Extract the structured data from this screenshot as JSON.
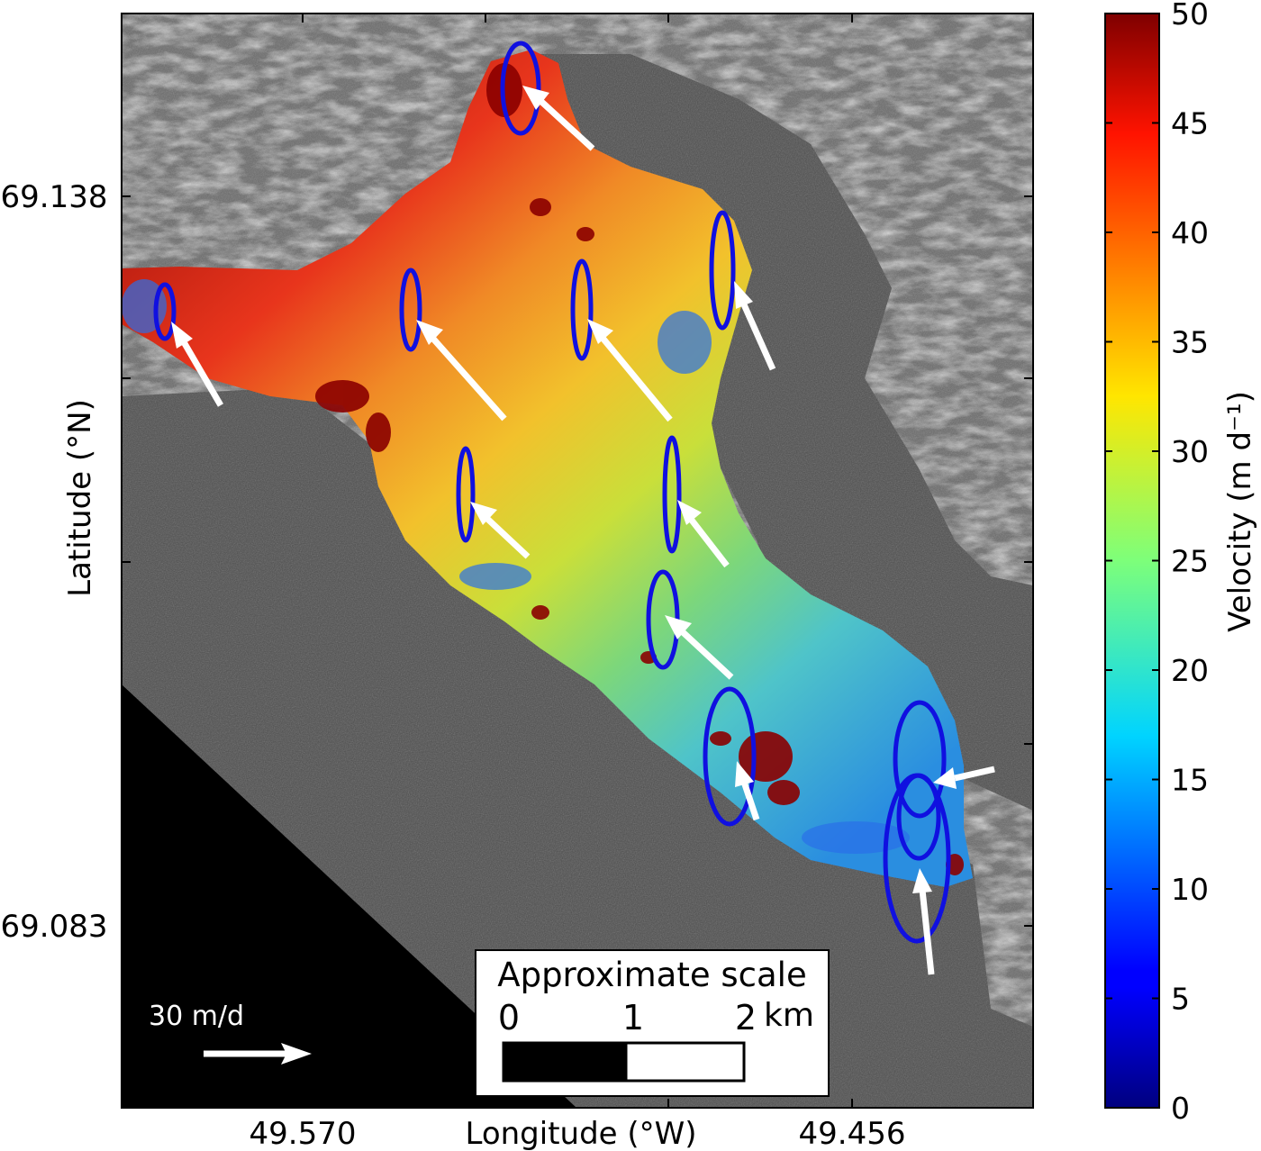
{
  "map": {
    "ylabel": "Latitude (°N)",
    "xlabel": "Longitude (°W)",
    "y_ticks": [
      "69.138",
      "69.083"
    ],
    "x_ticks": [
      "49.570",
      "49.456"
    ],
    "scale_arrow_label": "30 m/d",
    "scalebar": {
      "title": "Approximate scale",
      "labels": [
        "0",
        "1",
        "2"
      ],
      "unit": "km"
    }
  },
  "colorbar": {
    "label": "Velocity (m d⁻¹)",
    "ticks": [
      "0",
      "5",
      "10",
      "15",
      "20",
      "25",
      "30",
      "35",
      "40",
      "45",
      "50"
    ],
    "colormap": "jet",
    "range": [
      0,
      50
    ]
  },
  "colors": {
    "ellipse": "#1010e0",
    "arrow": "#ffffff",
    "water": "#555555",
    "no_data": "#000000"
  }
}
